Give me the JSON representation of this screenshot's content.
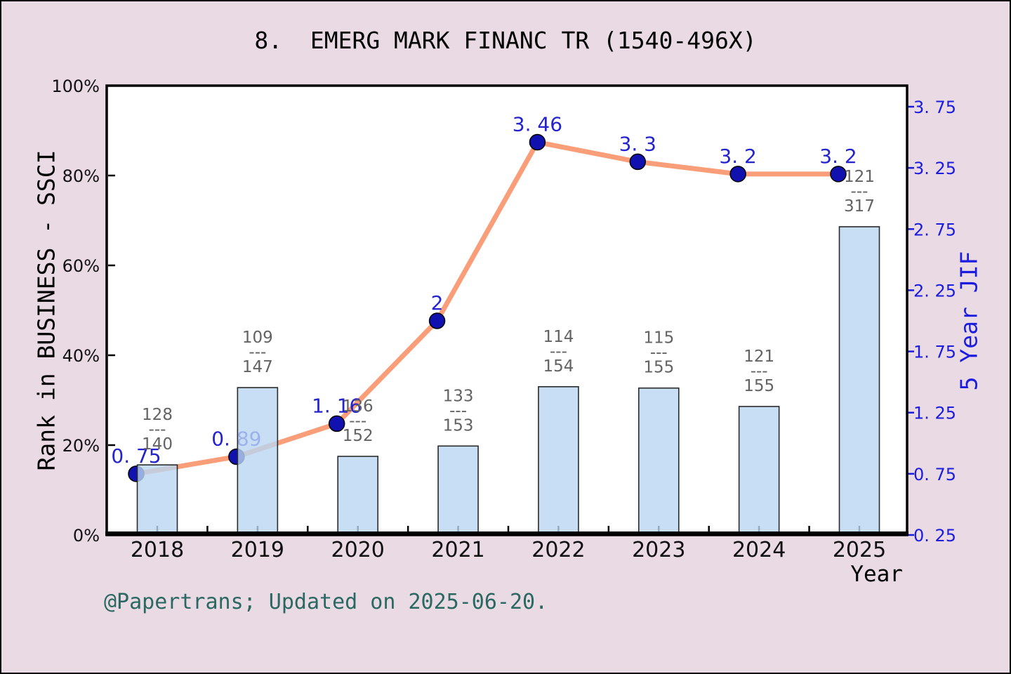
{
  "title": "8.  EMERG MARK FINANC TR (1540-496X)",
  "footer": "@Papertrans; Updated on 2025-06-20.",
  "axes": {
    "left": {
      "title": "Rank in BUSINESS - SSCI",
      "tick_values": [
        0,
        20,
        40,
        60,
        80,
        100
      ],
      "tick_labels": [
        "0%",
        "20%",
        "40%",
        "60%",
        "80%",
        "100%"
      ],
      "range": [
        0,
        100
      ]
    },
    "right": {
      "title": "5 Year JIF",
      "tick_values": [
        0.25,
        0.75,
        1.25,
        1.75,
        2.25,
        2.75,
        3.25,
        3.75
      ],
      "tick_labels": [
        "0. 25",
        "0. 75",
        "1. 25",
        "1. 75",
        "2. 25",
        "2. 75",
        "3. 25",
        "3. 75"
      ],
      "range": [
        0.25,
        3.75
      ]
    },
    "x": {
      "title": "Year"
    }
  },
  "chart_data": {
    "type": "bar+line",
    "categories": [
      "2018",
      "2019",
      "2020",
      "2021",
      "2022",
      "2023",
      "2024",
      "2025"
    ],
    "grid": false,
    "legend": "none",
    "series": [
      {
        "name": "Rank in BUSINESS - SSCI",
        "type": "bar",
        "axis": "left",
        "unit": "%",
        "values": [
          15.6,
          32.8,
          17.5,
          19.8,
          33.0,
          32.7,
          28.6,
          68.6
        ],
        "point_labels": [
          {
            "num": "128",
            "den": "140"
          },
          {
            "num": "109",
            "den": "147"
          },
          {
            "num": "136",
            "den": "152"
          },
          {
            "num": "133",
            "den": "153"
          },
          {
            "num": "114",
            "den": "154"
          },
          {
            "num": "115",
            "den": "155"
          },
          {
            "num": "121",
            "den": "155"
          },
          {
            "num": "121",
            "den": "317"
          }
        ]
      },
      {
        "name": "5 Year JIF",
        "type": "line",
        "axis": "right",
        "values": [
          0.75,
          0.89,
          1.16,
          2,
          3.46,
          3.3,
          3.2,
          3.2
        ],
        "point_labels": [
          "0. 75",
          "0. 89",
          "1. 16",
          "2",
          "3. 46",
          "3. 3",
          "3. 2",
          "3. 2"
        ]
      }
    ],
    "fraction_divider": "---"
  },
  "colors": {
    "background": "#e9dae3",
    "plot_background": "#ffffff",
    "axis": "#000000",
    "bar_fill": "#b9d6f2",
    "bar_stroke": "#2a2a2a",
    "line": "#f99e78",
    "dot": "#1111b0",
    "value_label": "#2424cf",
    "right_axis": "#1c1ce0",
    "fraction_label": "#636363",
    "footer_text": "#2b6862"
  }
}
